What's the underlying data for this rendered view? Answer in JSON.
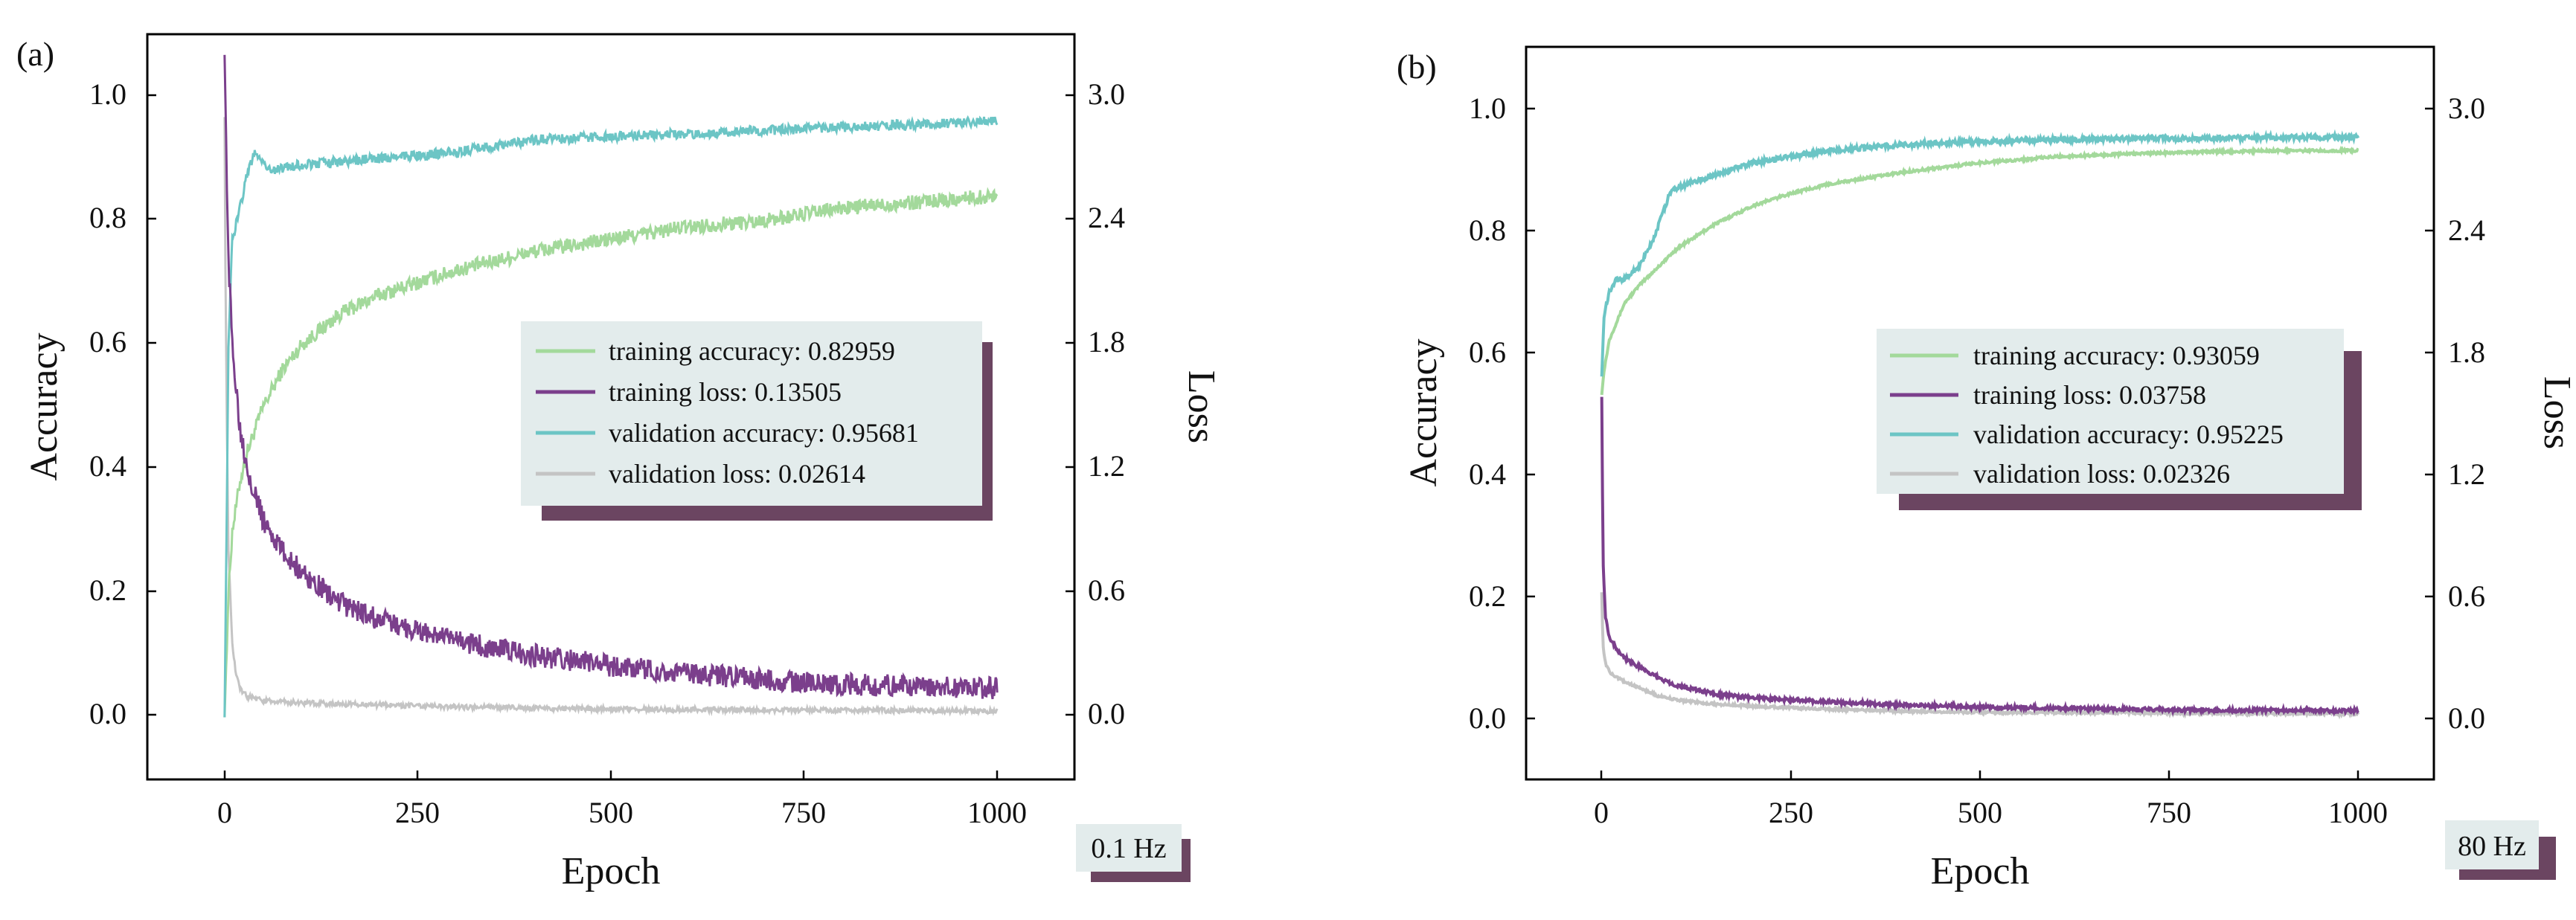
{
  "figure": {
    "panels": [
      {
        "label": "(a)",
        "frequency_badge": "0.1 Hz"
      },
      {
        "label": "(b)",
        "frequency_badge": "80 Hz"
      }
    ]
  },
  "chart_data": [
    {
      "type": "line",
      "panel_label": "(a)",
      "xlabel": "Epoch",
      "ylabel": "Accuracy",
      "y2label": "Loss",
      "xlim": [
        -100,
        1100
      ],
      "ylim": [
        -0.1,
        1.1
      ],
      "y2lim": [
        -0.3,
        3.3
      ],
      "xticks": [
        0,
        250,
        500,
        750,
        1000
      ],
      "yticks": [
        0.0,
        0.2,
        0.4,
        0.6,
        0.8,
        1.0
      ],
      "y2ticks": [
        0.0,
        0.6,
        1.2,
        1.8,
        2.4,
        3.0
      ],
      "xtick_labels": [
        "0",
        "250",
        "500",
        "750",
        "1000"
      ],
      "ytick_labels": [
        "0.0",
        "0.2",
        "0.4",
        "0.6",
        "0.8",
        "1.0"
      ],
      "y2tick_labels": [
        "0.0",
        "0.6",
        "1.2",
        "1.8",
        "2.4",
        "3.0"
      ],
      "legend_position": "center-right",
      "frequency": "0.1 Hz",
      "series": [
        {
          "name": "training accuracy",
          "final_value": "0.82959",
          "legend_label": "training accuracy: 0.82959",
          "axis": "left",
          "color": "#a3d99b",
          "noise": 0.012,
          "epochs": [
            0,
            5,
            10,
            20,
            30,
            50,
            75,
            100,
            150,
            200,
            250,
            300,
            400,
            500,
            600,
            700,
            800,
            900,
            1000
          ],
          "values": [
            0.0,
            0.2,
            0.3,
            0.38,
            0.43,
            0.5,
            0.56,
            0.6,
            0.65,
            0.68,
            0.7,
            0.72,
            0.75,
            0.77,
            0.79,
            0.8,
            0.82,
            0.83,
            0.84
          ]
        },
        {
          "name": "training loss",
          "final_value": "0.13505",
          "legend_label": "training loss: 0.13505",
          "axis": "right",
          "color": "#7b3f8c",
          "noise": 0.018,
          "epochs": [
            0,
            2,
            5,
            10,
            20,
            30,
            50,
            75,
            100,
            150,
            200,
            250,
            300,
            400,
            500,
            600,
            700,
            800,
            900,
            1000
          ],
          "values": [
            3.2,
            2.8,
            2.2,
            1.8,
            1.4,
            1.2,
            0.95,
            0.8,
            0.7,
            0.55,
            0.47,
            0.42,
            0.37,
            0.3,
            0.25,
            0.21,
            0.18,
            0.16,
            0.15,
            0.14
          ]
        },
        {
          "name": "validation accuracy",
          "final_value": "0.95681",
          "legend_label": "validation accuracy: 0.95681",
          "axis": "left",
          "color": "#6cc5c5",
          "noise": 0.008,
          "epochs": [
            0,
            5,
            10,
            20,
            30,
            40,
            60,
            100,
            200,
            300,
            350,
            400,
            500,
            600,
            700,
            800,
            900,
            1000
          ],
          "values": [
            0.0,
            0.6,
            0.77,
            0.82,
            0.88,
            0.91,
            0.88,
            0.89,
            0.9,
            0.91,
            0.92,
            0.93,
            0.935,
            0.94,
            0.945,
            0.95,
            0.955,
            0.96
          ]
        },
        {
          "name": "validation loss",
          "final_value": "0.02614",
          "legend_label": "validation loss: 0.02614",
          "axis": "right",
          "color": "#c4c4c4",
          "noise": 0.004,
          "epochs": [
            0,
            1,
            3,
            5,
            10,
            15,
            20,
            30,
            50,
            75,
            100,
            200,
            300,
            500,
            750,
            1000
          ],
          "values": [
            2.9,
            2.2,
            1.4,
            0.8,
            0.35,
            0.2,
            0.14,
            0.1,
            0.08,
            0.075,
            0.07,
            0.06,
            0.05,
            0.04,
            0.035,
            0.03
          ]
        }
      ]
    },
    {
      "type": "line",
      "panel_label": "(b)",
      "xlabel": "Epoch",
      "ylabel": "Accuracy",
      "y2label": "Loss",
      "xlim": [
        -100,
        1100
      ],
      "ylim": [
        -0.1,
        1.1
      ],
      "y2lim": [
        -0.3,
        3.3
      ],
      "xticks": [
        0,
        250,
        500,
        750,
        1000
      ],
      "yticks": [
        0.0,
        0.2,
        0.4,
        0.6,
        0.8,
        1.0
      ],
      "y2ticks": [
        0.0,
        0.6,
        1.2,
        1.8,
        2.4,
        3.0
      ],
      "xtick_labels": [
        "0",
        "250",
        "500",
        "750",
        "1000"
      ],
      "ytick_labels": [
        "0.0",
        "0.2",
        "0.4",
        "0.6",
        "0.8",
        "1.0"
      ],
      "y2tick_labels": [
        "0.0",
        "0.6",
        "1.2",
        "1.8",
        "2.4",
        "3.0"
      ],
      "legend_position": "center-right",
      "frequency": "80 Hz",
      "series": [
        {
          "name": "training accuracy",
          "final_value": "0.93059",
          "legend_label": "training accuracy: 0.93059",
          "axis": "left",
          "color": "#a3d99b",
          "noise": 0.002,
          "epochs": [
            0,
            3,
            10,
            20,
            30,
            50,
            75,
            100,
            150,
            200,
            250,
            300,
            400,
            500,
            600,
            700,
            800,
            900,
            1000
          ],
          "values": [
            0.53,
            0.57,
            0.62,
            0.65,
            0.68,
            0.71,
            0.74,
            0.77,
            0.81,
            0.84,
            0.86,
            0.875,
            0.895,
            0.91,
            0.92,
            0.925,
            0.928,
            0.93,
            0.93
          ]
        },
        {
          "name": "training loss",
          "final_value": "0.03758",
          "legend_label": "training loss: 0.03758",
          "axis": "right",
          "color": "#7b3f8c",
          "noise": 0.003,
          "epochs": [
            0,
            1,
            2,
            5,
            10,
            20,
            30,
            50,
            75,
            100,
            150,
            200,
            250,
            300,
            400,
            500,
            600,
            700,
            800,
            900,
            1000
          ],
          "values": [
            1.58,
            1.1,
            0.75,
            0.5,
            0.4,
            0.34,
            0.3,
            0.25,
            0.2,
            0.16,
            0.12,
            0.1,
            0.09,
            0.08,
            0.065,
            0.055,
            0.05,
            0.045,
            0.04,
            0.04,
            0.038
          ]
        },
        {
          "name": "validation accuracy",
          "final_value": "0.95225",
          "legend_label": "validation accuracy: 0.95225",
          "axis": "left",
          "color": "#6cc5c5",
          "noise": 0.004,
          "epochs": [
            0,
            3,
            10,
            20,
            30,
            50,
            70,
            90,
            100,
            150,
            200,
            250,
            300,
            400,
            500,
            600,
            700,
            800,
            900,
            1000
          ],
          "values": [
            0.56,
            0.66,
            0.7,
            0.72,
            0.72,
            0.74,
            0.79,
            0.86,
            0.87,
            0.89,
            0.91,
            0.92,
            0.93,
            0.94,
            0.945,
            0.948,
            0.95,
            0.95,
            0.952,
            0.952
          ]
        },
        {
          "name": "validation loss",
          "final_value": "0.02326",
          "legend_label": "validation loss: 0.02326",
          "axis": "right",
          "color": "#c4c4c4",
          "noise": 0.002,
          "epochs": [
            0,
            1,
            2,
            5,
            10,
            20,
            30,
            50,
            75,
            100,
            150,
            200,
            300,
            400,
            500,
            750,
            1000
          ],
          "values": [
            0.62,
            0.45,
            0.35,
            0.27,
            0.23,
            0.2,
            0.18,
            0.15,
            0.11,
            0.09,
            0.07,
            0.06,
            0.045,
            0.035,
            0.03,
            0.026,
            0.023
          ]
        }
      ]
    }
  ]
}
